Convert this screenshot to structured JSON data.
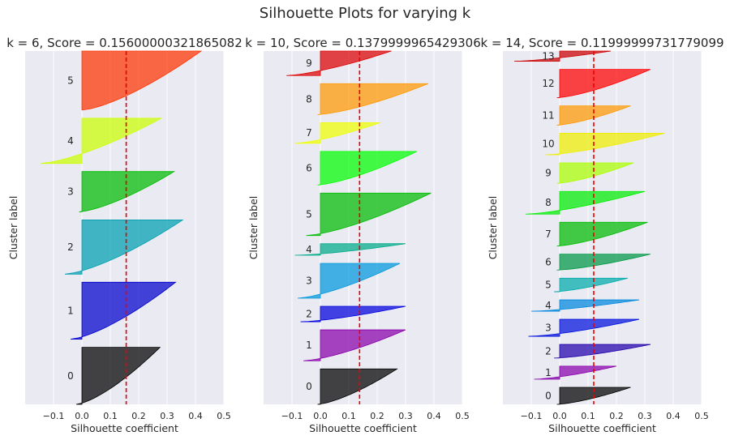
{
  "figure": {
    "suptitle": "Silhouette Plots for varying k"
  },
  "chart_data": [
    {
      "type": "area",
      "title": "k = 6, Score = 0.15600000321865082",
      "xlabel": "Silhouette coefficient",
      "ylabel": "Cluster label",
      "xlim": [
        -0.2,
        0.5
      ],
      "xticks": [
        -0.1,
        0.0,
        0.1,
        0.2,
        0.3,
        0.4,
        0.5
      ],
      "xtick_labels": [
        "−0.1",
        "0.0",
        "0.1",
        "0.2",
        "0.3",
        "0.4",
        "0.5"
      ],
      "score": 0.156,
      "clusters": [
        {
          "label": "0",
          "size": 82,
          "max": 0.275,
          "min": -0.02,
          "color": "#000000"
        },
        {
          "label": "1",
          "size": 82,
          "max": 0.33,
          "min": -0.04,
          "color": "#0000cc"
        },
        {
          "label": "2",
          "size": 78,
          "max": 0.355,
          "min": -0.06,
          "color": "#00a0b0"
        },
        {
          "label": "3",
          "size": 58,
          "max": 0.325,
          "min": -0.01,
          "color": "#00bb00"
        },
        {
          "label": "4",
          "size": 65,
          "max": 0.28,
          "min": -0.145,
          "color": "#ccff00"
        },
        {
          "label": "5",
          "size": 85,
          "max": 0.42,
          "min": 0.0,
          "color": "#ff3300"
        }
      ]
    },
    {
      "type": "area",
      "title": "k = 10, Score = 0.1379999965429306",
      "xlabel": "Silhouette coefficient",
      "ylabel": "Cluster label",
      "xlim": [
        -0.2,
        0.5
      ],
      "xticks": [
        -0.1,
        0.0,
        0.1,
        0.2,
        0.3,
        0.4,
        0.5
      ],
      "xtick_labels": [
        "−0.1",
        "0.0",
        "0.1",
        "0.2",
        "0.3",
        "0.4",
        "0.5"
      ],
      "score": 0.138,
      "clusters": [
        {
          "label": "0",
          "size": 55,
          "max": 0.27,
          "min": -0.01,
          "color": "#000000"
        },
        {
          "label": "1",
          "size": 48,
          "max": 0.3,
          "min": -0.06,
          "color": "#8800aa"
        },
        {
          "label": "2",
          "size": 24,
          "max": 0.3,
          "min": -0.07,
          "color": "#0000dd"
        },
        {
          "label": "3",
          "size": 54,
          "max": 0.28,
          "min": -0.08,
          "color": "#0099dd"
        },
        {
          "label": "4",
          "size": 18,
          "max": 0.3,
          "min": -0.09,
          "color": "#00aa88"
        },
        {
          "label": "5",
          "size": 66,
          "max": 0.39,
          "min": -0.05,
          "color": "#00bb00"
        },
        {
          "label": "6",
          "size": 52,
          "max": 0.34,
          "min": -0.01,
          "color": "#00ff00"
        },
        {
          "label": "7",
          "size": 32,
          "max": 0.21,
          "min": -0.09,
          "color": "#eeff00"
        },
        {
          "label": "8",
          "size": 48,
          "max": 0.38,
          "min": -0.01,
          "color": "#ff9900"
        },
        {
          "label": "9",
          "size": 38,
          "max": 0.25,
          "min": -0.12,
          "color": "#dd0000"
        }
      ]
    },
    {
      "type": "area",
      "title": "k = 14, Score = 0.11999999731779099",
      "xlabel": "Silhouette coefficient",
      "ylabel": "Cluster label",
      "xlim": [
        -0.2,
        0.5
      ],
      "xticks": [
        -0.1,
        0.0,
        0.1,
        0.2,
        0.3,
        0.4,
        0.5
      ],
      "xtick_labels": [
        "−0.1",
        "0.0",
        "0.1",
        "0.2",
        "0.3",
        "0.4",
        "0.5"
      ],
      "score": 0.12,
      "clusters": [
        {
          "label": "0",
          "size": 30,
          "max": 0.25,
          "min": -0.01,
          "color": "#000000"
        },
        {
          "label": "1",
          "size": 23,
          "max": 0.2,
          "min": -0.09,
          "color": "#8800aa"
        },
        {
          "label": "2",
          "size": 24,
          "max": 0.32,
          "min": -0.02,
          "color": "#2200aa"
        },
        {
          "label": "3",
          "size": 30,
          "max": 0.28,
          "min": -0.11,
          "color": "#0011dd"
        },
        {
          "label": "4",
          "size": 20,
          "max": 0.28,
          "min": -0.1,
          "color": "#0088dd"
        },
        {
          "label": "5",
          "size": 24,
          "max": 0.24,
          "min": -0.02,
          "color": "#00aaaa"
        },
        {
          "label": "6",
          "size": 28,
          "max": 0.32,
          "min": -0.01,
          "color": "#009944"
        },
        {
          "label": "7",
          "size": 42,
          "max": 0.31,
          "min": -0.01,
          "color": "#00bb00"
        },
        {
          "label": "8",
          "size": 40,
          "max": 0.3,
          "min": -0.12,
          "color": "#00ee00"
        },
        {
          "label": "9",
          "size": 36,
          "max": 0.26,
          "min": -0.01,
          "color": "#aaff00"
        },
        {
          "label": "10",
          "size": 38,
          "max": 0.37,
          "min": -0.05,
          "color": "#eeee00"
        },
        {
          "label": "11",
          "size": 34,
          "max": 0.25,
          "min": -0.01,
          "color": "#ff9900"
        },
        {
          "label": "12",
          "size": 50,
          "max": 0.32,
          "min": -0.01,
          "color": "#ff0000"
        },
        {
          "label": "13",
          "size": 18,
          "max": 0.18,
          "min": -0.16,
          "color": "#cc0000"
        }
      ]
    }
  ]
}
